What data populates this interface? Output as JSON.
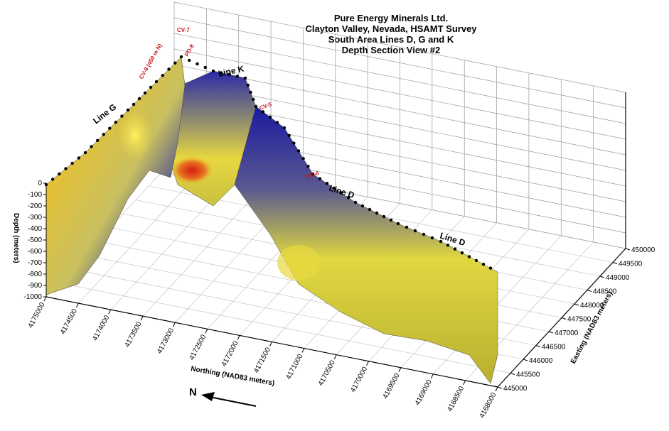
{
  "chart_data": {
    "type": "3d-fence-section",
    "title": [
      "Pure Energy Minerals Ltd.",
      "Clayton Valley, Nevada, HSAMT Survey",
      "South Area Lines D, G and K",
      "Depth Section View #2"
    ],
    "depth_axis": {
      "label": "Depth (meters)",
      "ticks": [
        "0",
        "-100",
        "-200",
        "-300",
        "-400",
        "-500",
        "-600",
        "-700",
        "-800",
        "-900",
        "-1000"
      ],
      "range": [
        -1000,
        0
      ]
    },
    "northing_axis": {
      "label": "Northing (NAD83 meters)",
      "ticks": [
        "4175000",
        "4174500",
        "4174000",
        "4173500",
        "4173000",
        "4172500",
        "4172000",
        "4171500",
        "4171000",
        "4170500",
        "4170000",
        "4169500",
        "4169000",
        "4168500",
        "4168000"
      ],
      "range": [
        4168000,
        4175000
      ]
    },
    "easting_axis": {
      "label": "Easting (NAD83 meters)",
      "ticks": [
        "445000",
        "445500",
        "446000",
        "446500",
        "447000",
        "447500",
        "448000",
        "448500",
        "449000",
        "449500",
        "450000"
      ],
      "range": [
        445000,
        450000
      ]
    },
    "lines": [
      "Line G",
      "Line K",
      "Line D",
      "Line D"
    ],
    "stations": [
      "CV-7",
      "CV-8 (450 m N)",
      "PD-8",
      "CV-5",
      "PD-6"
    ],
    "north_arrow": "N",
    "colors": {
      "low": "#1a1a9c",
      "mid": "#e8e040",
      "high": "#d42a10"
    }
  }
}
